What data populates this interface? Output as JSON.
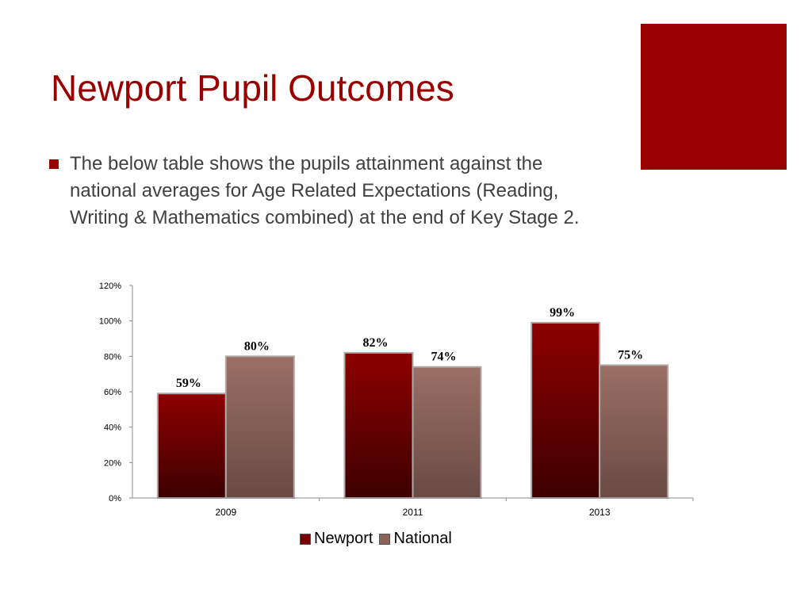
{
  "slide": {
    "title": "Newport Pupil Outcomes",
    "bullet": "The below table shows the pupils attainment against the national averages for Age Related Expectations (Reading, Writing & Mathematics combined) at the end of Key Stage 2.",
    "accent_color": "#990000"
  },
  "chart_data": {
    "type": "bar",
    "categories": [
      "2009",
      "2011",
      "2013"
    ],
    "series": [
      {
        "name": "Newport",
        "values": [
          59,
          82,
          99
        ],
        "labels": [
          "59%",
          "82%",
          "99%"
        ],
        "color": "#7a0000"
      },
      {
        "name": "National",
        "values": [
          80,
          74,
          75
        ],
        "labels": [
          "80%",
          "74%",
          "75%"
        ],
        "color": "#8b635a"
      }
    ],
    "ylim": [
      0,
      120
    ],
    "yticks": [
      "0%",
      "20%",
      "40%",
      "60%",
      "80%",
      "100%",
      "120%"
    ],
    "grid": false,
    "legend": "bottom"
  }
}
